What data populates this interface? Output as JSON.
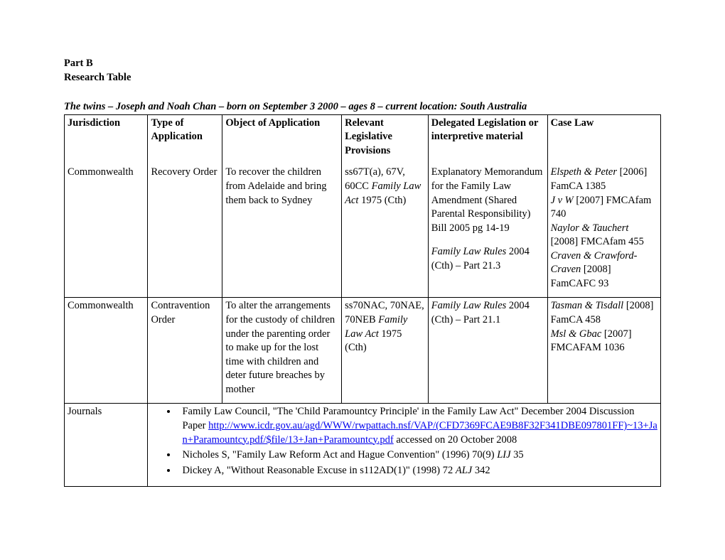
{
  "headings": {
    "part": "Part B",
    "subtitle": "Research Table",
    "tableTitle": "The twins – Joseph and Noah Chan – born on September 3 2000 – ages 8 – current location: South Australia"
  },
  "columns": {
    "c1": "Jurisdiction",
    "c2": "Type of Application",
    "c3": "Object of Application",
    "c4": "Relevant Legislative Provisions",
    "c5": "Delegated Legislation or interpretive material",
    "c6": "Case Law"
  },
  "row1": {
    "jurisdiction": "Commonwealth",
    "type": "Recovery Order",
    "object": "To recover the children from Adelaide and bring them back to Sydney",
    "prov_prefix": "ss67T(a), 67V, 60CC ",
    "prov_act": "Family Law Act",
    "prov_suffix": " 1975 (Cth)",
    "delegated_p1": "Explanatory Memorandum for the Family Law Amendment (Shared Parental Responsibility) Bill 2005 pg 14-19",
    "delegated_p2_italic": "Family Law Rules",
    "delegated_p2_rest": " 2004 (Cth) – Part 21.3",
    "case1_it": "Elspeth & Peter",
    "case1_rest": " [2006] FamCA 1385",
    "case2_it": "J v W",
    "case2_rest": " [2007] FMCAfam 740",
    "case3_it": "Naylor & Tauchert",
    "case3_rest": " [2008] FMCAfam 455",
    "case4_it": "Craven & Crawford-Craven",
    "case4_rest": " [2008] FamCAFC 93"
  },
  "row2": {
    "jurisdiction": "Commonwealth",
    "type": "Contravention Order",
    "object": "To alter the arrangements for the custody of children under the parenting order to make up for the lost time with children and deter future breaches by mother",
    "prov_prefix": "ss70NAC, 70NAE, 70NEB ",
    "prov_act": "Family Law Act",
    "prov_suffix": " 1975 (Cth)",
    "delegated_italic": "Family Law Rules",
    "delegated_rest": " 2004 (Cth) – Part 21.1",
    "case1_it": "Tasman & Tisdall",
    "case1_rest": " [2008] FamCA 458",
    "case2_it": "Msl & Gbac",
    "case2_rest": " [2007] FMCAFAM 1036"
  },
  "journals": {
    "label": "Journals",
    "b1_pre": "Family Law Council, \"The 'Child Paramountcy Principle' in the Family Law Act\" December 2004 Discussion Paper ",
    "b1_link_text": "http://www.icdr.gov.au/agd/WWW/rwpattach.nsf/VAP/(CFD7369FCAE9B8F32F341DBE097801FF)~13+Jan+Paramountcy.pdf/$file/13+Jan+Paramountcy.pdf",
    "b1_link_href": "http://www.icdr.gov.au/agd/WWW/rwpattach.nsf/VAP/(CFD7369FCAE9B8F32F341DBE097801FF)~13+Jan+Paramountcy.pdf/$file/13+Jan+Paramountcy.pdf",
    "b1_post": " accessed on 20 October 2008",
    "b2_pre": "Nicholes S, \"Family Law Reform Act and Hague Convention\" (1996) 70(9) ",
    "b2_it": "LIJ",
    "b2_post": " 35",
    "b3_pre": "Dickey A, \"Without Reasonable Excuse in s112AD(1)\" (1998) 72 ",
    "b3_it": "ALJ",
    "b3_post": " 342"
  },
  "widths": {
    "c1": "14%",
    "c2": "12.5%",
    "c3": "20%",
    "c4": "14.5%",
    "c5": "20%",
    "c6": "19%"
  }
}
